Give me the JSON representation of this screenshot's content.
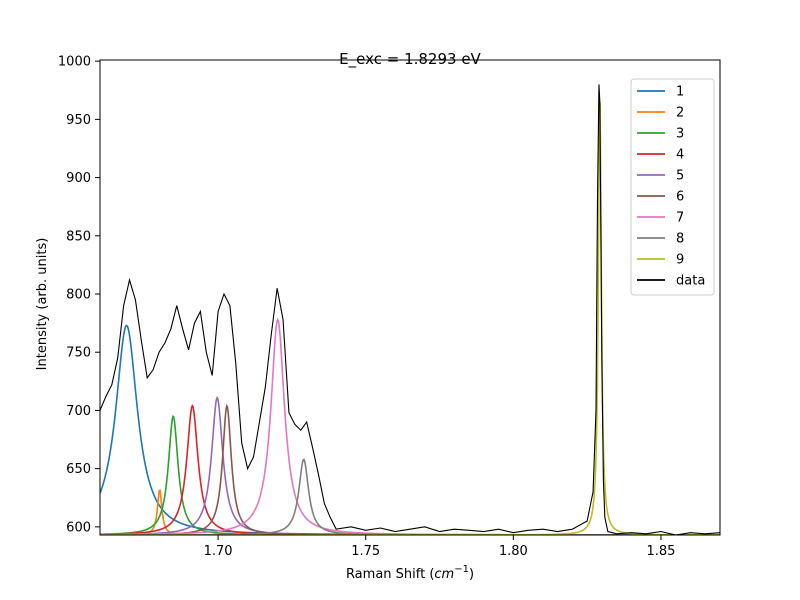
{
  "chart_data": {
    "type": "line",
    "title": "E_exc = 1.8293 eV",
    "xlabel": "Raman Shift (",
    "xlabel_unit": "cm",
    "xlabel_exp": "−1",
    "xlabel_close": ")",
    "ylabel": "Intensity (arb. units)",
    "xlim": [
      1.66,
      1.87
    ],
    "ylim": [
      593,
      1001
    ],
    "xticks": [
      1.7,
      1.75,
      1.8,
      1.85
    ],
    "xtick_labels": [
      "1.70",
      "1.75",
      "1.80",
      "1.85"
    ],
    "yticks": [
      600,
      650,
      700,
      750,
      800,
      850,
      900,
      950,
      1000
    ],
    "ytick_labels": [
      "600",
      "650",
      "700",
      "750",
      "800",
      "850",
      "900",
      "950",
      "1000"
    ],
    "grid": false,
    "legend_position": "top-right",
    "baseline": 593,
    "fit_x_range": [
      1.66,
      1.87
    ],
    "series": [
      {
        "name": "1",
        "color": "#1f77b4",
        "center": 1.669,
        "peak": 773,
        "width": 0.0045
      },
      {
        "name": "2",
        "color": "#ff7f0e",
        "center": 1.6802,
        "peak": 632,
        "width": 0.0009
      },
      {
        "name": "3",
        "color": "#2ca02c",
        "center": 1.6848,
        "peak": 695,
        "width": 0.002
      },
      {
        "name": "4",
        "color": "#d62728",
        "center": 1.6913,
        "peak": 704,
        "width": 0.0023
      },
      {
        "name": "5",
        "color": "#9467bd",
        "center": 1.6997,
        "peak": 711,
        "width": 0.0023
      },
      {
        "name": "6",
        "color": "#8c564b",
        "center": 1.703,
        "peak": 704,
        "width": 0.0018
      },
      {
        "name": "7",
        "color": "#e377c2",
        "center": 1.7202,
        "peak": 778,
        "width": 0.0028
      },
      {
        "name": "8",
        "color": "#7f7f7f",
        "center": 1.729,
        "peak": 658,
        "width": 0.002
      },
      {
        "name": "9",
        "color": "#bcbd22",
        "center": 1.8293,
        "peak": 975,
        "width": 0.0006
      }
    ],
    "data_series": {
      "name": "data",
      "color": "#000000",
      "x": [
        1.66,
        1.662,
        1.664,
        1.666,
        1.668,
        1.67,
        1.672,
        1.674,
        1.676,
        1.678,
        1.68,
        1.682,
        1.684,
        1.686,
        1.688,
        1.69,
        1.692,
        1.694,
        1.696,
        1.698,
        1.7,
        1.702,
        1.704,
        1.706,
        1.708,
        1.71,
        1.712,
        1.714,
        1.716,
        1.718,
        1.72,
        1.722,
        1.724,
        1.726,
        1.728,
        1.73,
        1.732,
        1.734,
        1.736,
        1.738,
        1.74,
        1.745,
        1.75,
        1.755,
        1.76,
        1.765,
        1.77,
        1.775,
        1.78,
        1.785,
        1.79,
        1.795,
        1.8,
        1.805,
        1.81,
        1.815,
        1.82,
        1.825,
        1.827,
        1.828,
        1.8285,
        1.829,
        1.8293,
        1.8296,
        1.83,
        1.8305,
        1.831,
        1.832,
        1.835,
        1.84,
        1.845,
        1.85,
        1.855,
        1.86,
        1.865,
        1.87
      ],
      "y": [
        700,
        712,
        722,
        745,
        790,
        812,
        795,
        760,
        728,
        735,
        750,
        758,
        770,
        790,
        770,
        752,
        775,
        785,
        750,
        730,
        785,
        800,
        790,
        740,
        672,
        650,
        660,
        690,
        720,
        765,
        805,
        778,
        698,
        688,
        683,
        690,
        668,
        645,
        620,
        608,
        598,
        600,
        597,
        599,
        596,
        598,
        600,
        596,
        598,
        597,
        596,
        598,
        595,
        597,
        598,
        596,
        598,
        605,
        630,
        700,
        880,
        980,
        965,
        870,
        740,
        640,
        608,
        596,
        594,
        595,
        594,
        596,
        593,
        595,
        594,
        595
      ]
    }
  }
}
